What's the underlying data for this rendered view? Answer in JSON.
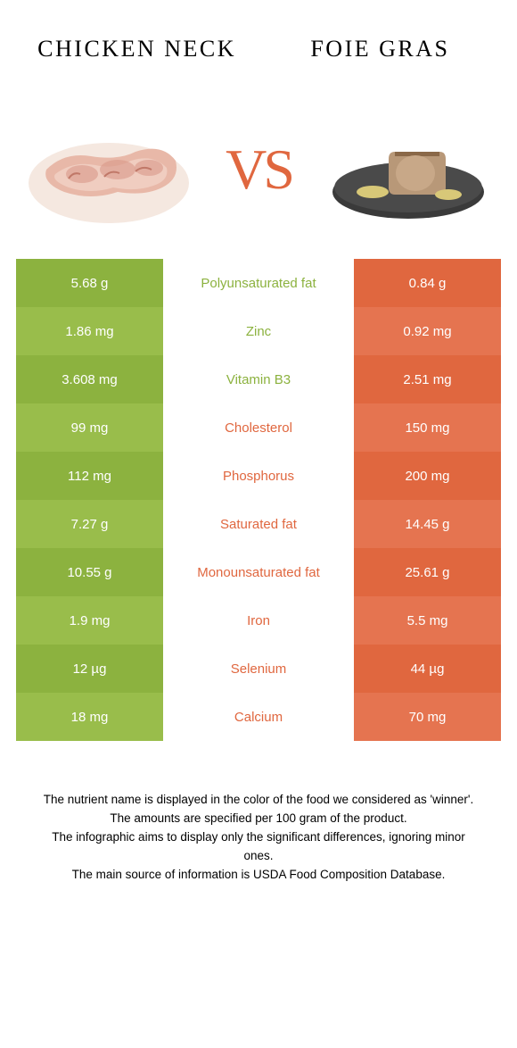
{
  "leftTitle": "CHICKEN NECK",
  "rightTitle": "FOIE GRAS",
  "vs": "VS",
  "colors": {
    "green": "#8cb23f",
    "greenAlt": "#99bd4b",
    "orange": "#e0673f",
    "orangeAlt": "#e57450"
  },
  "rows": [
    {
      "left": "5.68 g",
      "label": "Polyunsaturated fat",
      "right": "0.84 g",
      "winner": "green"
    },
    {
      "left": "1.86 mg",
      "label": "Zinc",
      "right": "0.92 mg",
      "winner": "green"
    },
    {
      "left": "3.608 mg",
      "label": "Vitamin B3",
      "right": "2.51 mg",
      "winner": "green"
    },
    {
      "left": "99 mg",
      "label": "Cholesterol",
      "right": "150 mg",
      "winner": "orange"
    },
    {
      "left": "112 mg",
      "label": "Phosphorus",
      "right": "200 mg",
      "winner": "orange"
    },
    {
      "left": "7.27 g",
      "label": "Saturated fat",
      "right": "14.45 g",
      "winner": "orange"
    },
    {
      "left": "10.55 g",
      "label": "Monounsaturated fat",
      "right": "25.61 g",
      "winner": "orange"
    },
    {
      "left": "1.9 mg",
      "label": "Iron",
      "right": "5.5 mg",
      "winner": "orange"
    },
    {
      "left": "12 µg",
      "label": "Selenium",
      "right": "44 µg",
      "winner": "orange"
    },
    {
      "left": "18 mg",
      "label": "Calcium",
      "right": "70 mg",
      "winner": "orange"
    }
  ],
  "footer": [
    "The nutrient name is displayed in the color of the food we considered as 'winner'.",
    "The amounts are specified per 100 gram of the product.",
    "The infographic aims to display only the significant differences, ignoring minor ones.",
    "The main source of information is USDA Food Composition Database."
  ]
}
